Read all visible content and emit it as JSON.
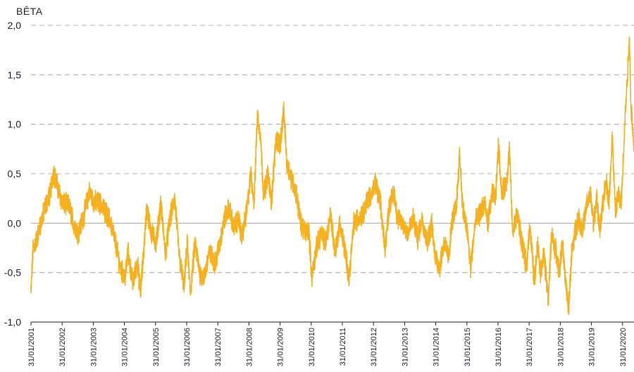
{
  "chart_data": {
    "type": "line",
    "title": "",
    "ylabel": "BÊTA",
    "xlabel": "",
    "ylim": [
      -1.0,
      2.0
    ],
    "yticks": [
      2.0,
      1.5,
      1.0,
      0.5,
      0.0,
      -0.5,
      -1.0
    ],
    "ytick_labels": [
      "2,0",
      "1,5",
      "1,0",
      "0,5",
      "0,0",
      "-0,5",
      "-1,0"
    ],
    "grid": true,
    "x_start_year": 2001.083,
    "x_end_year": 2020.45,
    "xtick_labels": [
      "31/01/2001",
      "31/01/2002",
      "31/01/2003",
      "31/01/2004",
      "31/01/2005",
      "31/01/2006",
      "31/01/2007",
      "31/01/2008",
      "31/01/2009",
      "31/01/2010",
      "31/01/2011",
      "31/01/2012",
      "31/01/2013",
      "31/01/2014",
      "31/01/2015",
      "31/01/2016",
      "31/01/2017",
      "31/01/2018",
      "31/01/2019",
      "31/01/2020"
    ],
    "series": [
      {
        "name": "Bêta",
        "color": "#F5B120",
        "anchors": [
          [
            2001.08,
            -0.72
          ],
          [
            2001.15,
            -0.25
          ],
          [
            2001.25,
            -0.18
          ],
          [
            2001.4,
            0.0
          ],
          [
            2001.55,
            0.18
          ],
          [
            2001.7,
            0.3
          ],
          [
            2001.8,
            0.52
          ],
          [
            2001.95,
            0.35
          ],
          [
            2002.1,
            0.2
          ],
          [
            2002.3,
            0.18
          ],
          [
            2002.45,
            0.0
          ],
          [
            2002.6,
            -0.1
          ],
          [
            2002.8,
            0.1
          ],
          [
            2002.95,
            0.32
          ],
          [
            2003.1,
            0.22
          ],
          [
            2003.3,
            0.2
          ],
          [
            2003.5,
            0.1
          ],
          [
            2003.65,
            0.0
          ],
          [
            2003.8,
            -0.2
          ],
          [
            2003.95,
            -0.45
          ],
          [
            2004.1,
            -0.55
          ],
          [
            2004.2,
            -0.3
          ],
          [
            2004.35,
            -0.6
          ],
          [
            2004.5,
            -0.4
          ],
          [
            2004.6,
            -0.7
          ],
          [
            2004.7,
            -0.3
          ],
          [
            2004.8,
            0.15
          ],
          [
            2004.95,
            -0.1
          ],
          [
            2005.1,
            -0.2
          ],
          [
            2005.25,
            0.2
          ],
          [
            2005.4,
            -0.3
          ],
          [
            2005.55,
            0.05
          ],
          [
            2005.7,
            0.25
          ],
          [
            2005.85,
            -0.35
          ],
          [
            2006.0,
            -0.65
          ],
          [
            2006.1,
            -0.2
          ],
          [
            2006.2,
            -0.72
          ],
          [
            2006.35,
            -0.2
          ],
          [
            2006.5,
            -0.5
          ],
          [
            2006.65,
            -0.55
          ],
          [
            2006.8,
            -0.3
          ],
          [
            2007.0,
            -0.4
          ],
          [
            2007.15,
            -0.2
          ],
          [
            2007.3,
            0.05
          ],
          [
            2007.45,
            0.15
          ],
          [
            2007.6,
            -0.05
          ],
          [
            2007.75,
            0.05
          ],
          [
            2007.85,
            -0.15
          ],
          [
            2008.0,
            0.1
          ],
          [
            2008.15,
            0.5
          ],
          [
            2008.25,
            0.2
          ],
          [
            2008.35,
            1.1
          ],
          [
            2008.45,
            0.9
          ],
          [
            2008.55,
            0.3
          ],
          [
            2008.7,
            0.5
          ],
          [
            2008.8,
            0.2
          ],
          [
            2008.95,
            0.85
          ],
          [
            2009.1,
            0.8
          ],
          [
            2009.2,
            1.15
          ],
          [
            2009.3,
            0.6
          ],
          [
            2009.45,
            0.45
          ],
          [
            2009.6,
            0.3
          ],
          [
            2009.75,
            0.0
          ],
          [
            2009.9,
            -0.1
          ],
          [
            2010.0,
            -0.05
          ],
          [
            2010.1,
            -0.55
          ],
          [
            2010.25,
            -0.25
          ],
          [
            2010.4,
            -0.1
          ],
          [
            2010.55,
            -0.2
          ],
          [
            2010.7,
            0.1
          ],
          [
            2010.85,
            -0.3
          ],
          [
            2011.0,
            0.0
          ],
          [
            2011.15,
            -0.25
          ],
          [
            2011.3,
            -0.55
          ],
          [
            2011.45,
            0.0
          ],
          [
            2011.6,
            0.05
          ],
          [
            2011.75,
            0.1
          ],
          [
            2011.9,
            0.25
          ],
          [
            2012.05,
            0.3
          ],
          [
            2012.15,
            0.4
          ],
          [
            2012.3,
            0.2
          ],
          [
            2012.45,
            -0.25
          ],
          [
            2012.6,
            0.2
          ],
          [
            2012.75,
            0.3
          ],
          [
            2012.85,
            0.05
          ],
          [
            2013.0,
            0.0
          ],
          [
            2013.2,
            -0.1
          ],
          [
            2013.35,
            0.05
          ],
          [
            2013.5,
            -0.15
          ],
          [
            2013.65,
            0.05
          ],
          [
            2013.8,
            -0.2
          ],
          [
            2013.95,
            0.0
          ],
          [
            2014.05,
            -0.3
          ],
          [
            2014.2,
            -0.45
          ],
          [
            2014.35,
            -0.2
          ],
          [
            2014.5,
            -0.35
          ],
          [
            2014.6,
            0.0
          ],
          [
            2014.75,
            0.2
          ],
          [
            2014.85,
            0.7
          ],
          [
            2014.95,
            0.15
          ],
          [
            2015.1,
            -0.1
          ],
          [
            2015.2,
            -0.45
          ],
          [
            2015.35,
            0.0
          ],
          [
            2015.5,
            0.1
          ],
          [
            2015.65,
            0.2
          ],
          [
            2015.75,
            0.0
          ],
          [
            2015.9,
            0.3
          ],
          [
            2016.0,
            0.25
          ],
          [
            2016.1,
            0.8
          ],
          [
            2016.2,
            0.3
          ],
          [
            2016.35,
            0.4
          ],
          [
            2016.45,
            0.75
          ],
          [
            2016.55,
            -0.1
          ],
          [
            2016.7,
            0.1
          ],
          [
            2016.85,
            -0.2
          ],
          [
            2017.0,
            -0.45
          ],
          [
            2017.1,
            0.0
          ],
          [
            2017.25,
            -0.6
          ],
          [
            2017.35,
            -0.2
          ],
          [
            2017.45,
            -0.5
          ],
          [
            2017.55,
            -0.3
          ],
          [
            2017.7,
            -0.78
          ],
          [
            2017.8,
            -0.1
          ],
          [
            2017.95,
            -0.3
          ],
          [
            2018.05,
            -0.5
          ],
          [
            2018.15,
            -0.2
          ],
          [
            2018.25,
            -0.6
          ],
          [
            2018.35,
            -0.85
          ],
          [
            2018.45,
            -0.3
          ],
          [
            2018.55,
            -0.1
          ],
          [
            2018.65,
            0.05
          ],
          [
            2018.8,
            -0.05
          ],
          [
            2018.95,
            0.2
          ],
          [
            2019.05,
            0.3
          ],
          [
            2019.15,
            0.0
          ],
          [
            2019.25,
            0.25
          ],
          [
            2019.35,
            -0.1
          ],
          [
            2019.45,
            0.2
          ],
          [
            2019.55,
            0.45
          ],
          [
            2019.65,
            0.2
          ],
          [
            2019.75,
            0.9
          ],
          [
            2019.85,
            0.1
          ],
          [
            2019.95,
            0.3
          ],
          [
            2020.0,
            0.2
          ],
          [
            2020.05,
            0.25
          ],
          [
            2020.15,
            1.0
          ],
          [
            2020.25,
            1.55
          ],
          [
            2020.3,
            1.9
          ],
          [
            2020.35,
            1.2
          ],
          [
            2020.4,
            1.0
          ],
          [
            2020.45,
            0.72
          ]
        ]
      }
    ]
  }
}
